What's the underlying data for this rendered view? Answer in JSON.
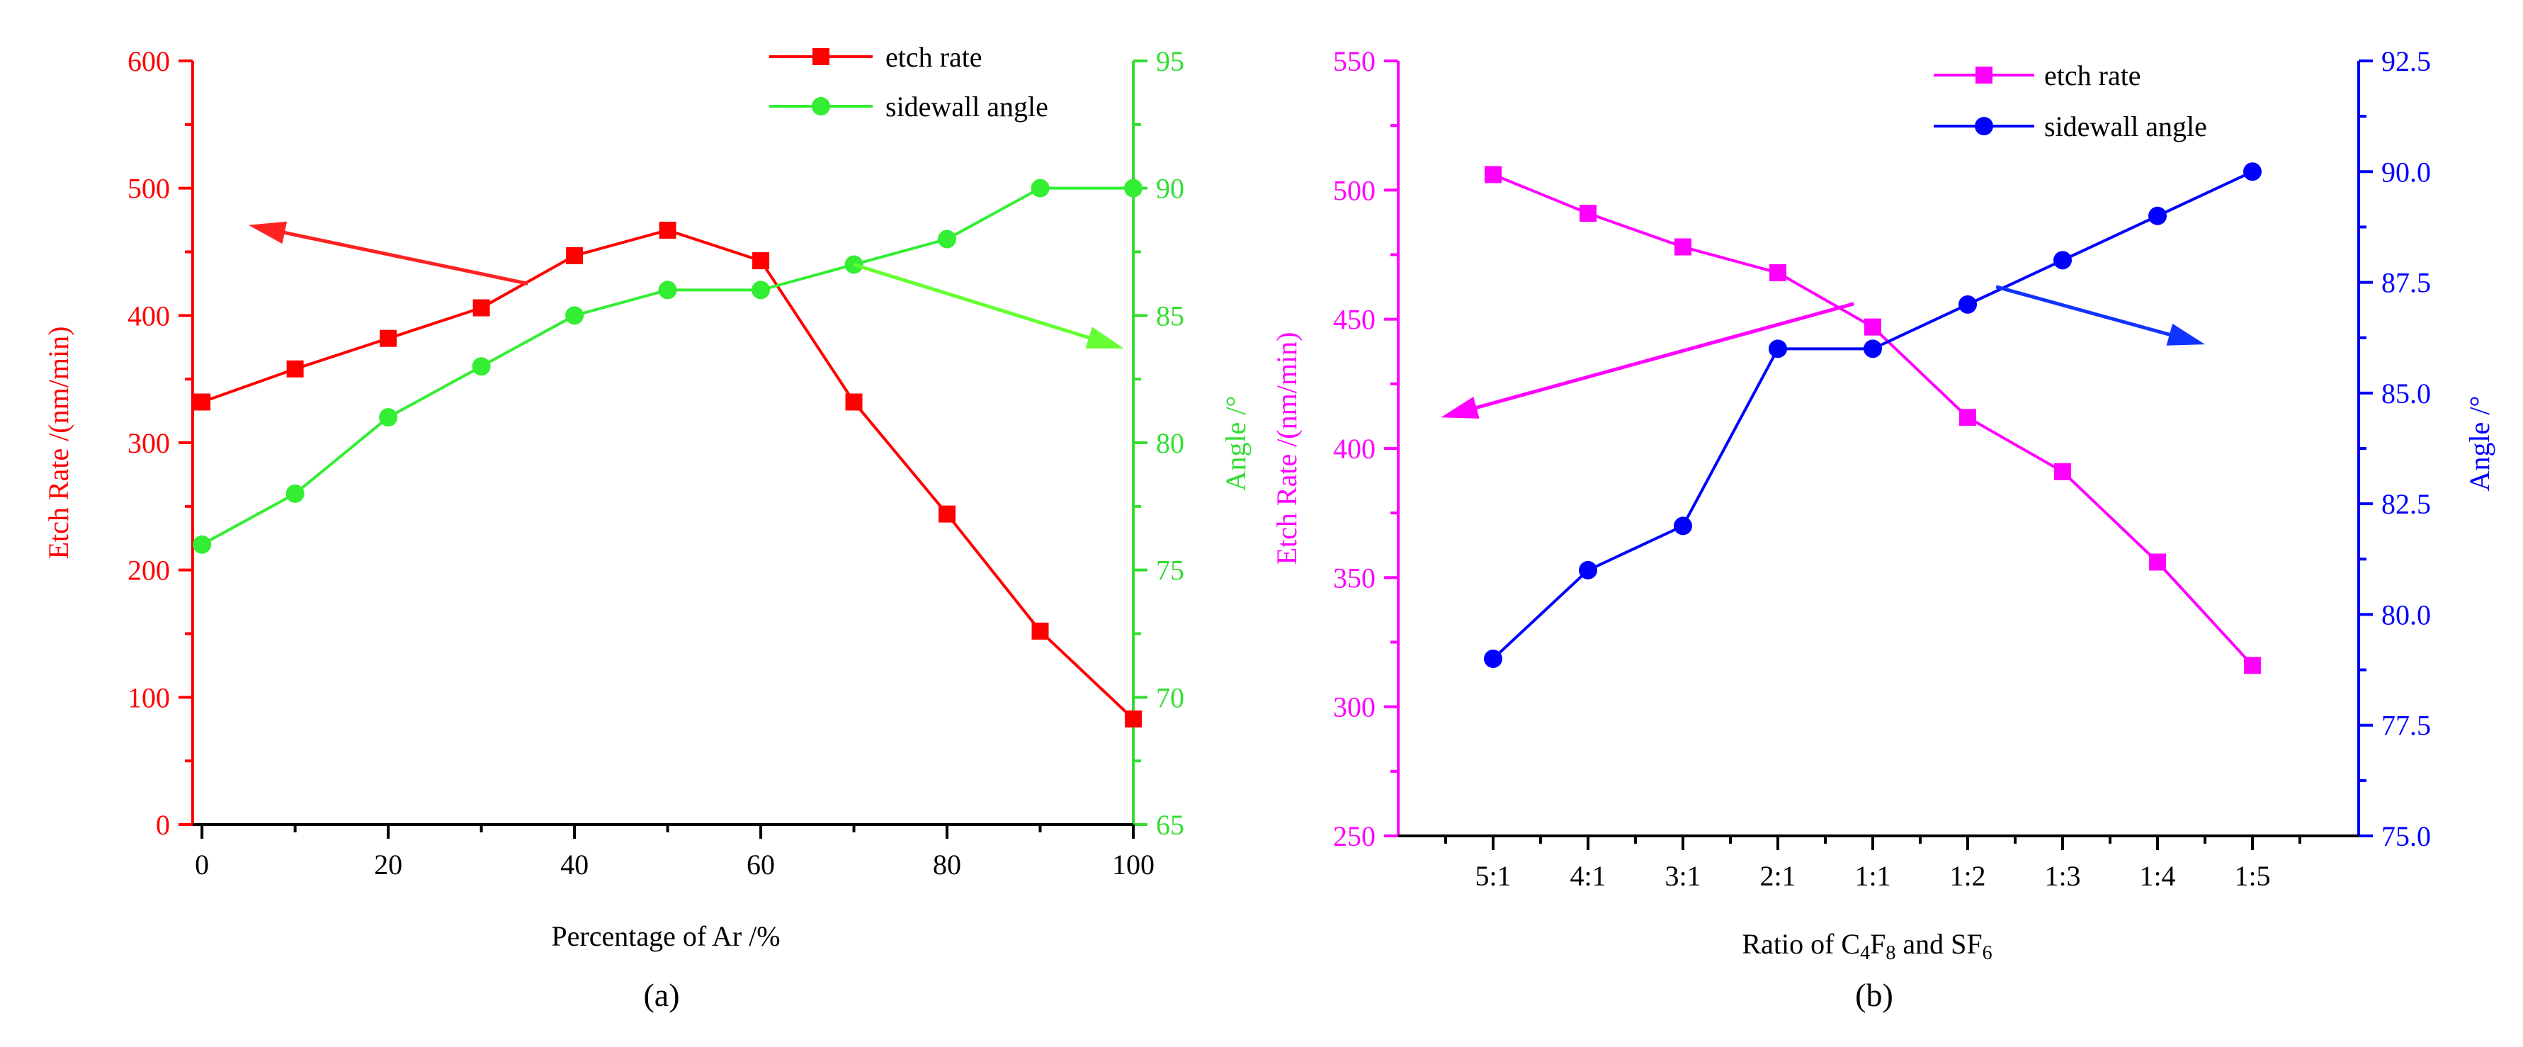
{
  "chart_data": [
    {
      "type": "line",
      "panel_label": "(a)",
      "xlabel": "Percentage of Ar /%",
      "ylabel_left": "Etch Rate /(nm/min)",
      "ylabel_right": "Angle /°",
      "x_ticks": [
        "0",
        "20",
        "40",
        "60",
        "80",
        "100"
      ],
      "y_left_ticks": [
        "0",
        "100",
        "200",
        "300",
        "400",
        "500",
        "600"
      ],
      "y_right_ticks": [
        "65",
        "70",
        "75",
        "80",
        "85",
        "90",
        "95"
      ],
      "xlim": [
        -1,
        100
      ],
      "ylim_left": [
        0,
        600
      ],
      "ylim_right": [
        65,
        95
      ],
      "grid": false,
      "legend_position": "top-right",
      "colors": {
        "left_axis": "#ff0000",
        "right_axis": "#33dd33",
        "x_axis": "#000000"
      },
      "series": [
        {
          "name": "etch rate",
          "axis": "left",
          "marker": "square",
          "color": "#ff0000",
          "x": [
            0,
            10,
            20,
            30,
            40,
            50,
            60,
            70,
            80,
            90,
            100
          ],
          "values": [
            332,
            358,
            382,
            406,
            447,
            467,
            443,
            332,
            244,
            152,
            83
          ]
        },
        {
          "name": "sidewall angle",
          "axis": "right",
          "marker": "circle",
          "color": "#33ee33",
          "x": [
            0,
            10,
            20,
            30,
            40,
            50,
            60,
            70,
            80,
            90,
            100
          ],
          "values": [
            76,
            78,
            81,
            83,
            85,
            86,
            86,
            87,
            88,
            90,
            90
          ]
        }
      ],
      "annotations": [
        {
          "kind": "arrow",
          "color": "#ff2222",
          "from": [
            35,
            425
          ],
          "to": [
            5,
            471
          ],
          "axis": "left"
        },
        {
          "kind": "arrow",
          "color": "#66ff33",
          "from": [
            70,
            87
          ],
          "to": [
            99,
            83.7
          ],
          "axis": "right"
        }
      ]
    },
    {
      "type": "line",
      "panel_label": "(b)",
      "xlabel_parts": [
        "Ratio of C",
        "4",
        "F",
        "8",
        " and SF",
        "6"
      ],
      "ylabel_left": "Etch Rate /(nm/min)",
      "ylabel_right": "Angle /°",
      "categories": [
        "5:1",
        "4:1",
        "3:1",
        "2:1",
        "1:1",
        "1:2",
        "1:3",
        "1:4",
        "1:5"
      ],
      "y_left_ticks": [
        "250",
        "300",
        "350",
        "400",
        "450",
        "500",
        "550"
      ],
      "y_right_ticks": [
        "75.0",
        "77.5",
        "80.0",
        "82.5",
        "85.0",
        "87.5",
        "90.0",
        "92.5"
      ],
      "ylim_left": [
        250,
        550
      ],
      "ylim_right": [
        75,
        92.5
      ],
      "grid": false,
      "legend_position": "top-right",
      "colors": {
        "left_axis": "#ff00ff",
        "right_axis": "#0000ff",
        "x_axis": "#000000"
      },
      "series": [
        {
          "name": "etch rate",
          "axis": "left",
          "marker": "square",
          "color": "#ff00ff",
          "values": [
            506,
            491,
            478,
            468,
            447,
            412,
            391,
            356,
            316
          ]
        },
        {
          "name": "sidewall angle",
          "axis": "right",
          "marker": "circle",
          "color": "#0000ff",
          "values": [
            79,
            81,
            82,
            86,
            86,
            87,
            88,
            89,
            90
          ]
        }
      ],
      "annotations": [
        {
          "kind": "arrow",
          "color": "#ff00ff",
          "from": [
            3.8,
            456
          ],
          "to": [
            -0.55,
            412
          ],
          "axis": "left"
        },
        {
          "kind": "arrow",
          "color": "#1133ff",
          "from": [
            5.3,
            87.4
          ],
          "to": [
            7.5,
            86.1
          ],
          "axis": "right"
        }
      ]
    }
  ]
}
